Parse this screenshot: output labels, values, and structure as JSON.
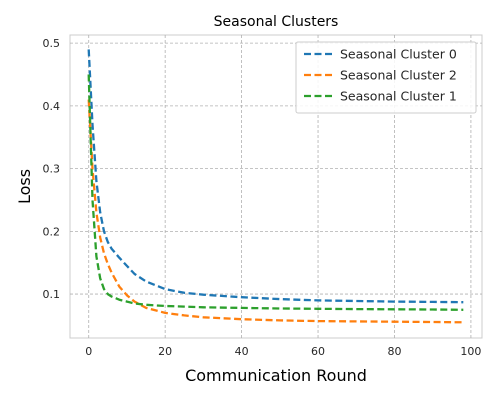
{
  "chart_data": {
    "type": "line",
    "title": "Seasonal Clusters",
    "xlabel": "Communication Round",
    "ylabel": "Loss",
    "xlim": [
      -4.9,
      102.9
    ],
    "ylim": [
      0.03,
      0.513
    ],
    "xticks": [
      0,
      20,
      40,
      60,
      80,
      100
    ],
    "yticks": [
      0.1,
      0.2,
      0.3,
      0.4,
      0.5
    ],
    "grid": true,
    "legend_position": "top-right",
    "line_style": "dashed",
    "series": [
      {
        "name": "Seasonal Cluster 0",
        "color": "#1f77b4",
        "x": [
          0,
          1,
          2,
          3,
          4,
          5,
          6,
          8,
          10,
          12,
          15,
          20,
          25,
          30,
          40,
          50,
          60,
          70,
          80,
          90,
          98
        ],
        "y": [
          0.49,
          0.37,
          0.28,
          0.23,
          0.2,
          0.183,
          0.172,
          0.158,
          0.145,
          0.132,
          0.12,
          0.108,
          0.102,
          0.099,
          0.095,
          0.092,
          0.09,
          0.089,
          0.088,
          0.0875,
          0.087
        ]
      },
      {
        "name": "Seasonal Cluster 2",
        "color": "#ff7f0e",
        "x": [
          0,
          1,
          2,
          3,
          4,
          5,
          6,
          8,
          10,
          12,
          15,
          20,
          25,
          30,
          40,
          50,
          60,
          70,
          80,
          90,
          98
        ],
        "y": [
          0.41,
          0.3,
          0.23,
          0.19,
          0.165,
          0.148,
          0.134,
          0.112,
          0.098,
          0.088,
          0.078,
          0.07,
          0.066,
          0.063,
          0.06,
          0.058,
          0.057,
          0.0565,
          0.056,
          0.0555,
          0.055
        ]
      },
      {
        "name": "Seasonal Cluster 1",
        "color": "#2ca02c",
        "x": [
          0,
          1,
          2,
          3,
          4,
          5,
          6,
          8,
          10,
          12,
          15,
          20,
          25,
          30,
          40,
          50,
          60,
          70,
          80,
          90,
          98
        ],
        "y": [
          0.45,
          0.25,
          0.16,
          0.125,
          0.108,
          0.1,
          0.096,
          0.091,
          0.088,
          0.085,
          0.083,
          0.081,
          0.08,
          0.079,
          0.078,
          0.077,
          0.0765,
          0.076,
          0.0758,
          0.0755,
          0.075
        ]
      }
    ]
  }
}
